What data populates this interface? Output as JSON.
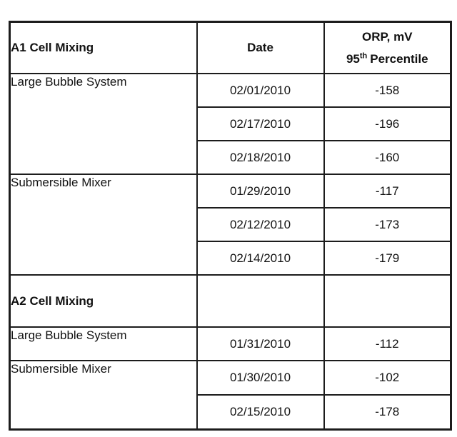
{
  "colors": {
    "border": "#1c1c1c",
    "text": "#111111",
    "background": "#ffffff"
  },
  "table": {
    "header": {
      "mixing_label": "A1 Cell Mixing",
      "date_label": "Date",
      "orp_line1": "ORP, mV",
      "orp_line2_number": "95",
      "orp_line2_sup": "th",
      "orp_line2_word": "Percentile"
    },
    "a1": {
      "large_bubble": {
        "label": "Large Bubble System",
        "readings": [
          {
            "date": "02/01/2010",
            "orp": "-158"
          },
          {
            "date": "02/17/2010",
            "orp": "-196"
          },
          {
            "date": "02/18/2010",
            "orp": "-160"
          }
        ]
      },
      "submersible": {
        "label": "Submersible Mixer",
        "readings": [
          {
            "date": "01/29/2010",
            "orp": "-117"
          },
          {
            "date": "02/12/2010",
            "orp": "-173"
          },
          {
            "date": "02/14/2010",
            "orp": "-179"
          }
        ]
      }
    },
    "a2": {
      "section_label": "A2 Cell Mixing",
      "large_bubble": {
        "label": "Large Bubble System",
        "readings": [
          {
            "date": "01/31/2010",
            "orp": "-112"
          }
        ]
      },
      "submersible": {
        "label": "Submersible Mixer",
        "readings": [
          {
            "date": "01/30/2010",
            "orp": "-102"
          },
          {
            "date": "02/15/2010",
            "orp": "-178"
          }
        ]
      }
    }
  }
}
